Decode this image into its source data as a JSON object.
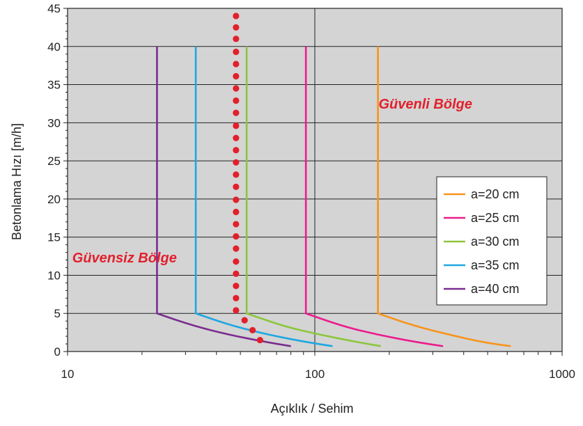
{
  "chart_data": {
    "type": "line",
    "xscale": "log",
    "xlim": [
      10,
      1000
    ],
    "ylim": [
      0,
      45
    ],
    "xlabel": "Açıklık / Sehim",
    "ylabel": "Betonlama Hızı [m/h]",
    "x_ticks": [
      "10",
      "100",
      "1000"
    ],
    "y_ticks": [
      "0",
      "5",
      "10",
      "15",
      "20",
      "25",
      "30",
      "35",
      "40",
      "45"
    ],
    "grid": true,
    "background": "#d4d4d4",
    "legend_position": "right",
    "annotations": [
      {
        "text": "Güvenli Bölge",
        "x": 280,
        "y": 32.5,
        "color": "#e2202c"
      },
      {
        "text": "Güvensiz Bölge",
        "x": 17,
        "y": 12.3,
        "color": "#e2202c"
      }
    ],
    "series": [
      {
        "name": "a=20 cm",
        "color": "#f7941d",
        "points": [
          [
            180,
            40
          ],
          [
            180,
            5
          ],
          [
            250,
            3.4
          ],
          [
            350,
            2.2
          ],
          [
            480,
            1.2
          ],
          [
            620,
            0.7
          ]
        ]
      },
      {
        "name": "a=25 cm",
        "color": "#ec1c8c",
        "points": [
          [
            92,
            40
          ],
          [
            92,
            5
          ],
          [
            130,
            3.3
          ],
          [
            180,
            2.2
          ],
          [
            250,
            1.3
          ],
          [
            330,
            0.7
          ]
        ]
      },
      {
        "name": "a=30 cm",
        "color": "#8dc63f",
        "points": [
          [
            53,
            40
          ],
          [
            53,
            5
          ],
          [
            75,
            3.3
          ],
          [
            105,
            2.2
          ],
          [
            145,
            1.3
          ],
          [
            185,
            0.7
          ]
        ]
      },
      {
        "name": "a=35 cm",
        "color": "#1ea7e1",
        "points": [
          [
            33,
            40
          ],
          [
            33,
            5
          ],
          [
            46,
            3.4
          ],
          [
            65,
            2.2
          ],
          [
            90,
            1.3
          ],
          [
            118,
            0.7
          ]
        ]
      },
      {
        "name": "a=40 cm",
        "color": "#7b2c8e",
        "points": [
          [
            23,
            40
          ],
          [
            23,
            5
          ],
          [
            32,
            3.4
          ],
          [
            45,
            2.2
          ],
          [
            62,
            1.3
          ],
          [
            80,
            0.7
          ]
        ]
      }
    ],
    "boundary": {
      "type": "dotted",
      "color": "#e2202c",
      "points": [
        [
          48,
          44
        ],
        [
          48,
          42.5
        ],
        [
          48,
          41
        ],
        [
          48,
          39.3
        ],
        [
          48,
          37.7
        ],
        [
          48,
          36.1
        ],
        [
          48,
          34.5
        ],
        [
          48,
          32.9
        ],
        [
          48,
          31.3
        ],
        [
          48,
          29.6
        ],
        [
          48,
          28
        ],
        [
          48,
          26.4
        ],
        [
          48,
          24.8
        ],
        [
          48,
          23.2
        ],
        [
          48,
          21.6
        ],
        [
          48,
          19.9
        ],
        [
          48,
          18.3
        ],
        [
          48,
          16.7
        ],
        [
          48,
          15.1
        ],
        [
          48,
          13.5
        ],
        [
          48,
          11.8
        ],
        [
          48,
          10.2
        ],
        [
          48,
          8.6
        ],
        [
          48,
          7
        ],
        [
          48,
          5.4
        ],
        [
          52,
          4.1
        ],
        [
          56,
          2.8
        ],
        [
          60,
          1.5
        ]
      ]
    }
  }
}
